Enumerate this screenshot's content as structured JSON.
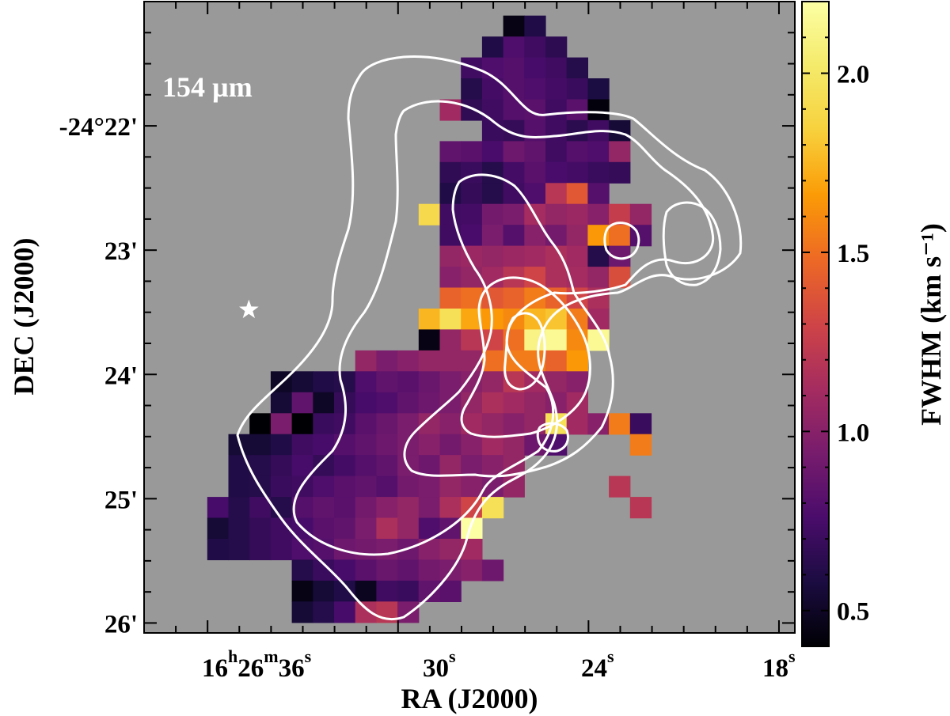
{
  "chart_data": {
    "type": "heatmap",
    "annotation": "154 µm",
    "xlabel": "RA (J2000)",
    "ylabel": "DEC (J2000)",
    "colorbar_label": "FWHM (km s⁻¹)",
    "colorbar_range": [
      0.4,
      2.2
    ],
    "colorbar_ticks": [
      "0.5",
      "1.0",
      "1.5",
      "2.0"
    ],
    "colormap": "inferno",
    "background_color": "#999999",
    "contour_color": "#ffffff",
    "x_tick_labels": [
      {
        "major": "16",
        "h": "h",
        "min": "26",
        "m": "m",
        "sec": "36",
        "s": "s"
      },
      {
        "sec": "30",
        "s": "s"
      },
      {
        "sec": "24",
        "s": "s"
      },
      {
        "sec": "18",
        "s": "s"
      }
    ],
    "y_tick_labels": [
      "-24°22'",
      "23'",
      "24'",
      "25'",
      "26'"
    ],
    "x_range_sec": [
      38.0,
      17.5
    ],
    "y_range_arcmin": [
      21.0,
      26.08
    ],
    "marker": {
      "shape": "star",
      "ra_sec": 34.7,
      "dec_arcmin": 23.48
    },
    "grid": {
      "ra_start": 38.0,
      "ra_step": 0.63,
      "dec_start": 21.28,
      "dec_step": 0.165,
      "rows": [
        "..........................7.................",
        "............................................",
        "......................................9.9.....",
        "............................................",
        "..........................................",
        ".........................................................",
        ".....................................,",
        "..........................................",
        "............................................",
        "......................................"
      ],
      "cells": [
        {
          "r": 0,
          "c": 17,
          "v": 0.45
        },
        {
          "r": 0,
          "c": 18,
          "v": 0.7
        },
        {
          "r": 1,
          "c": 16,
          "v": 0.62
        },
        {
          "r": 1,
          "c": 17,
          "v": 0.75
        },
        {
          "r": 1,
          "c": 18,
          "v": 0.72
        },
        {
          "r": 2,
          "c": 15,
          "v": 0.7
        },
        {
          "r": 2,
          "c": 16,
          "v": 0.75
        },
        {
          "r": 2,
          "c": 17,
          "v": 0.74
        },
        {
          "r": 2,
          "c": 18,
          "v": 0.72
        },
        {
          "r": 2,
          "c": 19,
          "v": 0.68
        },
        {
          "r": 3,
          "c": 14,
          "v": 0.55
        },
        {
          "r": 3,
          "c": 15,
          "v": 0.72
        },
        {
          "r": 3,
          "c": 16,
          "v": 0.76
        },
        {
          "r": 3,
          "c": 17,
          "v": 0.8
        },
        {
          "r": 3,
          "c": 18,
          "v": 0.78
        },
        {
          "r": 3,
          "c": 19,
          "v": 0.7
        },
        {
          "r": 3,
          "c": 20,
          "v": 0.62
        },
        {
          "r": 4,
          "c": 14,
          "v": 1.05
        },
        {
          "r": 4,
          "c": 15,
          "v": 0.62
        },
        {
          "r": 4,
          "c": 16,
          "v": 0.72
        },
        {
          "r": 4,
          "c": 17,
          "v": 0.8
        },
        {
          "r": 4,
          "c": 18,
          "v": 0.85
        },
        {
          "r": 4,
          "c": 19,
          "v": 0.72
        },
        {
          "r": 4,
          "c": 20,
          "v": 0.42
        },
        {
          "r": 5,
          "c": 14,
          "v": 0.82
        },
        {
          "r": 5,
          "c": 15,
          "v": 0.66
        },
        {
          "r": 5,
          "c": 16,
          "v": 0.8
        },
        {
          "r": 5,
          "c": 17,
          "v": 0.82
        },
        {
          "r": 5,
          "c": 18,
          "v": 0.74
        },
        {
          "r": 5,
          "c": 19,
          "v": 0.66
        },
        {
          "r": 5,
          "c": 20,
          "v": 0.6
        },
        {
          "r": 5,
          "c": 21,
          "v": 0.55
        },
        {
          "r": 6,
          "c": 13,
          "v": 0.74
        },
        {
          "r": 6,
          "c": 14,
          "v": 0.78
        },
        {
          "r": 6,
          "c": 15,
          "v": 0.82
        },
        {
          "r": 6,
          "c": 16,
          "v": 0.68
        },
        {
          "r": 6,
          "c": 17,
          "v": 0.7
        },
        {
          "r": 6,
          "c": 18,
          "v": 0.72
        },
        {
          "r": 6,
          "c": 19,
          "v": 0.88
        },
        {
          "r": 6,
          "c": 20,
          "v": 0.78
        },
        {
          "r": 6,
          "c": 21,
          "v": 0.95
        }
      ]
    }
  }
}
